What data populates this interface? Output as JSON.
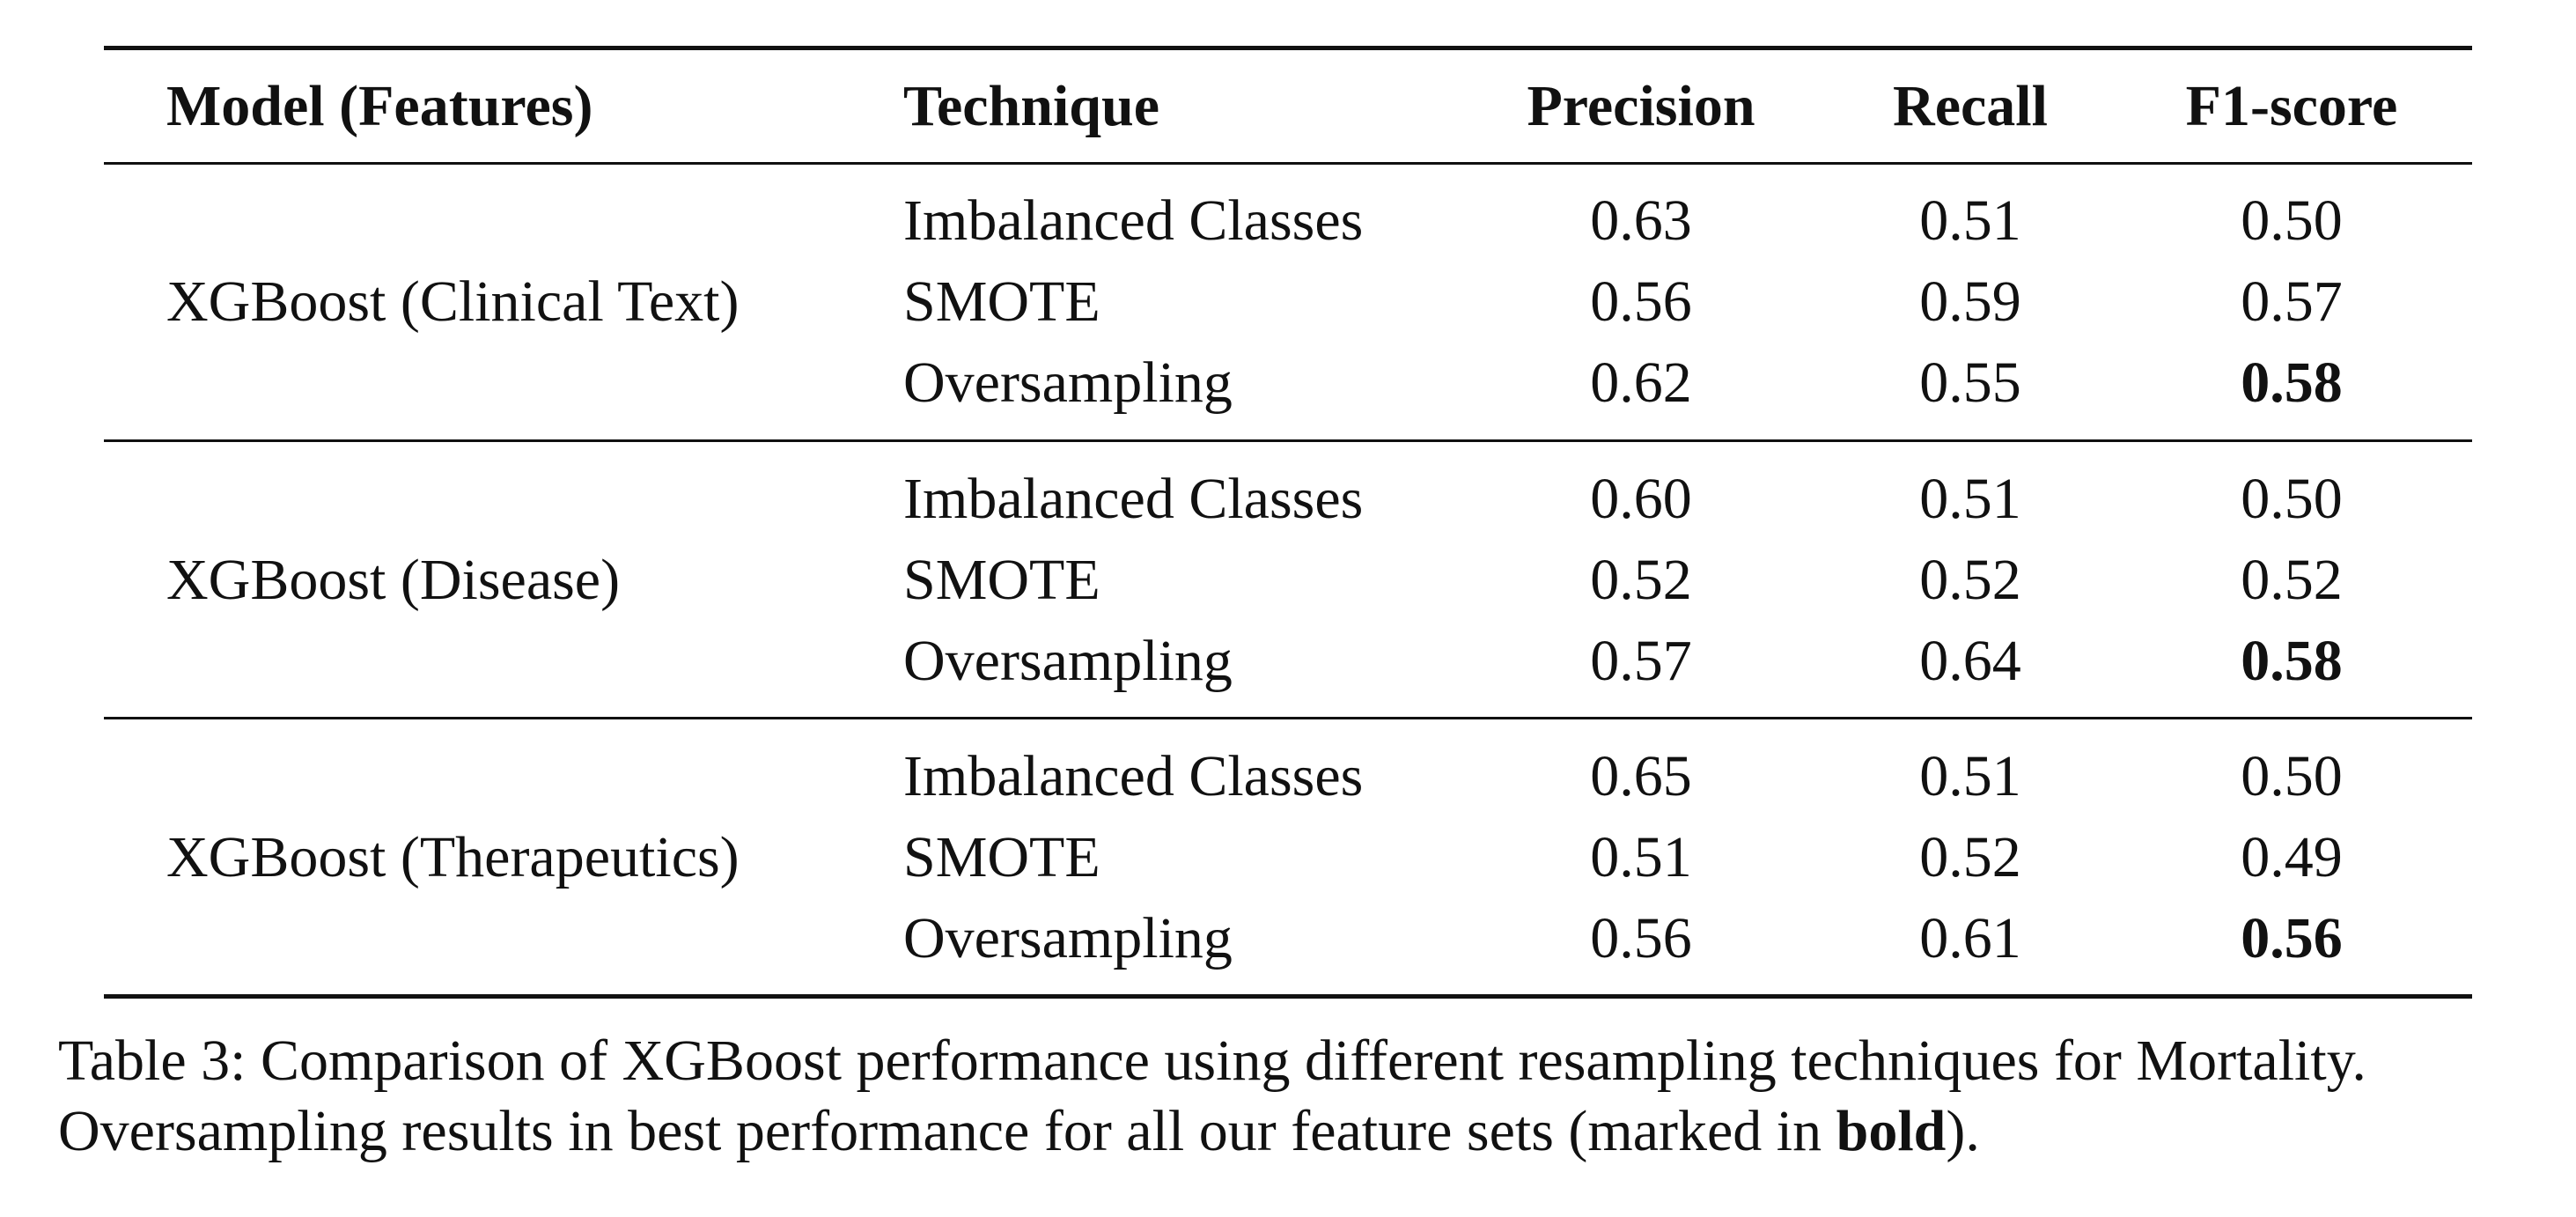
{
  "table": {
    "headers": {
      "model": "Model (Features)",
      "technique": "Technique",
      "precision": "Precision",
      "recall": "Recall",
      "f1": "F1-score"
    },
    "groups": [
      {
        "model": "XGBoost (Clinical Text)",
        "rows": [
          {
            "technique": "Imbalanced Classes",
            "precision": "0.63",
            "recall": "0.51",
            "f1": "0.50",
            "best": false
          },
          {
            "technique": "SMOTE",
            "precision": "0.56",
            "recall": "0.59",
            "f1": "0.57",
            "best": false
          },
          {
            "technique": "Oversampling",
            "precision": "0.62",
            "recall": "0.55",
            "f1": "0.58",
            "best": true
          }
        ]
      },
      {
        "model": "XGBoost (Disease)",
        "rows": [
          {
            "technique": "Imbalanced Classes",
            "precision": "0.60",
            "recall": "0.51",
            "f1": "0.50",
            "best": false
          },
          {
            "technique": "SMOTE",
            "precision": "0.52",
            "recall": "0.52",
            "f1": "0.52",
            "best": false
          },
          {
            "technique": "Oversampling",
            "precision": "0.57",
            "recall": "0.64",
            "f1": "0.58",
            "best": true
          }
        ]
      },
      {
        "model": "XGBoost (Therapeutics)",
        "rows": [
          {
            "technique": "Imbalanced Classes",
            "precision": "0.65",
            "recall": "0.51",
            "f1": "0.50",
            "best": false
          },
          {
            "technique": "SMOTE",
            "precision": "0.51",
            "recall": "0.52",
            "f1": "0.49",
            "best": false
          },
          {
            "technique": "Oversampling",
            "precision": "0.56",
            "recall": "0.61",
            "f1": "0.56",
            "best": true
          }
        ]
      }
    ]
  },
  "caption": {
    "line1": "Table 3: Comparison of XGBoost performance using different resampling techniques for Mortality.",
    "line2_before": "Oversampling results in best performance for all our feature sets (marked in ",
    "line2_bold": "bold",
    "line2_after": ")."
  }
}
